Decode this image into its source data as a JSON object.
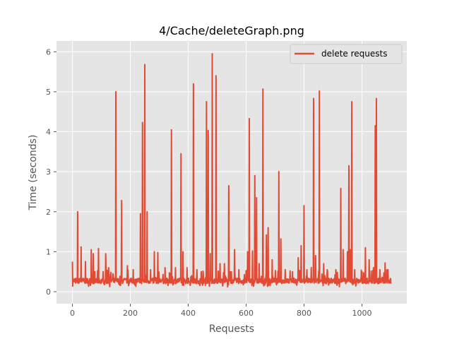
{
  "chart_data": {
    "type": "line",
    "title": "4/Cache/deleteGraph.png",
    "xlabel": "Requests",
    "ylabel": "Time (seconds)",
    "xlim": [
      -55,
      1155
    ],
    "ylim": [
      -0.3,
      6.27
    ],
    "x_ticks": [
      0,
      200,
      400,
      600,
      800,
      1000
    ],
    "y_ticks": [
      0,
      1,
      2,
      3,
      4,
      5,
      6
    ],
    "x_tick_labels": [
      "0",
      "200",
      "400",
      "600",
      "800",
      "1000"
    ],
    "y_tick_labels": [
      "0",
      "1",
      "2",
      "3",
      "4",
      "5",
      "6"
    ],
    "grid": true,
    "legend": {
      "position": "top-right",
      "entries": [
        "delete requests"
      ]
    },
    "colors": {
      "series": "#E24A33",
      "plot_bg": "#E5E5E5",
      "grid": "#FFFFFF"
    },
    "point_count": 1100,
    "baseline_level": 0.27,
    "series": [
      {
        "name": "delete requests",
        "spikes": [
          [
            0,
            0.75
          ],
          [
            18,
            2.0
          ],
          [
            30,
            1.12
          ],
          [
            45,
            0.75
          ],
          [
            65,
            1.05
          ],
          [
            72,
            0.95
          ],
          [
            90,
            1.08
          ],
          [
            115,
            0.95
          ],
          [
            125,
            0.6
          ],
          [
            150,
            5.0
          ],
          [
            170,
            2.28
          ],
          [
            190,
            0.65
          ],
          [
            210,
            0.55
          ],
          [
            235,
            1.95
          ],
          [
            242,
            4.23
          ],
          [
            250,
            5.68
          ],
          [
            258,
            2.0
          ],
          [
            270,
            0.55
          ],
          [
            283,
            1.0
          ],
          [
            295,
            0.98
          ],
          [
            320,
            0.6
          ],
          [
            342,
            4.05
          ],
          [
            356,
            0.6
          ],
          [
            375,
            3.45
          ],
          [
            382,
            1.0
          ],
          [
            396,
            0.6
          ],
          [
            418,
            5.2
          ],
          [
            430,
            0.55
          ],
          [
            445,
            0.5
          ],
          [
            463,
            4.75
          ],
          [
            469,
            4.03
          ],
          [
            476,
            0.95
          ],
          [
            483,
            5.95
          ],
          [
            496,
            5.4
          ],
          [
            510,
            0.7
          ],
          [
            525,
            0.7
          ],
          [
            540,
            2.65
          ],
          [
            560,
            1.05
          ],
          [
            575,
            0.55
          ],
          [
            605,
            1.0
          ],
          [
            611,
            4.33
          ],
          [
            622,
            1.02
          ],
          [
            630,
            2.9
          ],
          [
            636,
            2.35
          ],
          [
            645,
            0.7
          ],
          [
            658,
            5.07
          ],
          [
            670,
            1.42
          ],
          [
            676,
            1.6
          ],
          [
            690,
            0.8
          ],
          [
            713,
            3.0
          ],
          [
            720,
            1.32
          ],
          [
            735,
            0.55
          ],
          [
            760,
            0.5
          ],
          [
            780,
            0.85
          ],
          [
            790,
            1.15
          ],
          [
            800,
            2.15
          ],
          [
            810,
            0.55
          ],
          [
            825,
            0.6
          ],
          [
            833,
            4.83
          ],
          [
            840,
            0.9
          ],
          [
            853,
            5.02
          ],
          [
            868,
            0.7
          ],
          [
            880,
            0.55
          ],
          [
            910,
            0.55
          ],
          [
            927,
            2.58
          ],
          [
            935,
            1.05
          ],
          [
            950,
            1.0
          ],
          [
            955,
            3.15
          ],
          [
            960,
            1.05
          ],
          [
            965,
            4.75
          ],
          [
            975,
            0.55
          ],
          [
            1000,
            0.5
          ],
          [
            1012,
            1.1
          ],
          [
            1025,
            0.8
          ],
          [
            1040,
            0.6
          ],
          [
            1046,
            4.15
          ],
          [
            1050,
            4.83
          ],
          [
            1062,
            0.55
          ],
          [
            1080,
            0.72
          ],
          [
            1090,
            0.55
          ],
          [
            1100,
            0.2
          ]
        ]
      }
    ]
  }
}
